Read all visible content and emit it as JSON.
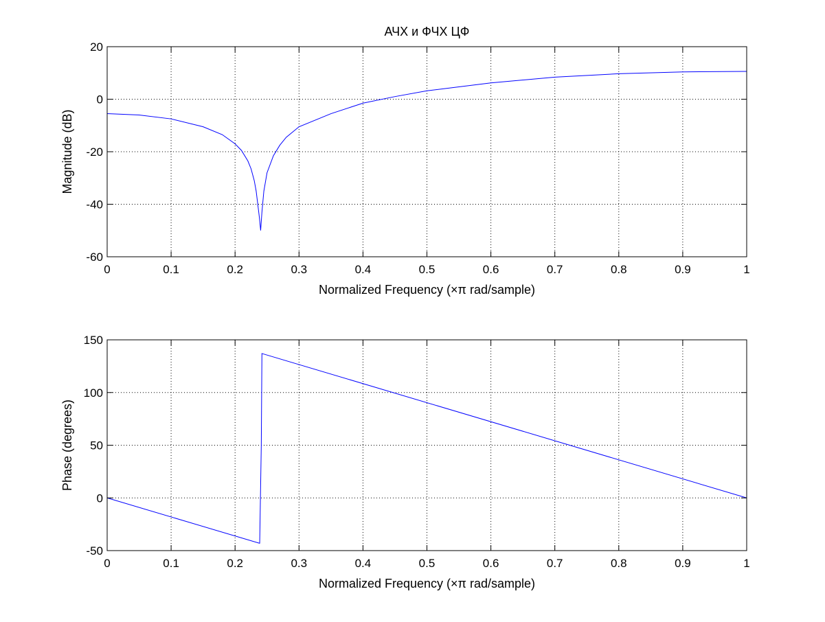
{
  "chart_data": [
    {
      "type": "line",
      "title": "АЧХ и ФЧХ ЦФ",
      "xlabel": "Normalized Frequency  (×π rad/sample)",
      "ylabel": "Magnitude (dB)",
      "xlim": [
        0,
        1
      ],
      "ylim": [
        -60,
        20
      ],
      "xticks": [
        0,
        0.1,
        0.2,
        0.3,
        0.4,
        0.5,
        0.6,
        0.7,
        0.8,
        0.9,
        1
      ],
      "xtick_labels": [
        "0",
        "0.1",
        "0.2",
        "0.3",
        "0.4",
        "0.5",
        "0.6",
        "0.7",
        "0.8",
        "0.9",
        "1"
      ],
      "yticks": [
        -60,
        -40,
        -20,
        0,
        20
      ],
      "ytick_labels": [
        "-60",
        "-40",
        "-20",
        "0",
        "20"
      ],
      "grid": true,
      "color": "#0000ff",
      "series": [
        {
          "x": [
            0,
            0.05,
            0.1,
            0.15,
            0.18,
            0.2,
            0.21,
            0.22,
            0.225,
            0.23,
            0.233,
            0.236,
            0.238,
            0.24,
            0.242,
            0.245,
            0.25,
            0.26,
            0.27,
            0.28,
            0.3,
            0.35,
            0.4,
            0.45,
            0.5,
            0.6,
            0.7,
            0.8,
            0.9,
            1.0
          ],
          "y": [
            -5.5,
            -6.0,
            -7.5,
            -10.5,
            -13.5,
            -17,
            -19.5,
            -23.5,
            -26.5,
            -31,
            -35,
            -41,
            -45,
            -50,
            -43,
            -35,
            -28,
            -21.5,
            -17.5,
            -14.5,
            -10.5,
            -5.5,
            -1.5,
            1.0,
            3.2,
            6.2,
            8.4,
            9.7,
            10.4,
            10.6
          ]
        }
      ]
    },
    {
      "type": "line",
      "title": "",
      "xlabel": "Normalized Frequency  (×π rad/sample)",
      "ylabel": "Phase (degrees)",
      "xlim": [
        0,
        1
      ],
      "ylim": [
        -50,
        150
      ],
      "xticks": [
        0,
        0.1,
        0.2,
        0.3,
        0.4,
        0.5,
        0.6,
        0.7,
        0.8,
        0.9,
        1
      ],
      "xtick_labels": [
        "0",
        "0.1",
        "0.2",
        "0.3",
        "0.4",
        "0.5",
        "0.6",
        "0.7",
        "0.8",
        "0.9",
        "1"
      ],
      "yticks": [
        -50,
        0,
        50,
        100,
        150
      ],
      "ytick_labels": [
        "-50",
        "0",
        "50",
        "100",
        "150"
      ],
      "grid": true,
      "color": "#0000ff",
      "series": [
        {
          "x": [
            0,
            0.238,
            0.2385,
            0.241,
            0.242,
            1.0
          ],
          "y": [
            0,
            -43,
            -43,
            50,
            137,
            0
          ]
        }
      ]
    }
  ]
}
